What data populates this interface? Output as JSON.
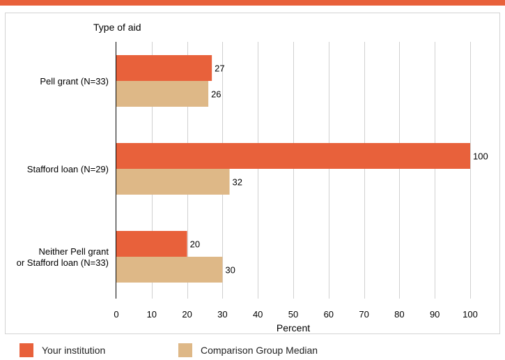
{
  "colors": {
    "top_rule": "#e8613b",
    "your_institution": "#e8613b",
    "comparison": "#deb887",
    "grid": "#d0d0d0",
    "axis": "#000000",
    "text": "#000000"
  },
  "chart_data": {
    "type": "bar",
    "orientation": "horizontal",
    "ylabel": "Type of aid",
    "xlabel": "Percent",
    "xlim": [
      0,
      100
    ],
    "xticks": [
      "0",
      "10",
      "20",
      "30",
      "40",
      "50",
      "60",
      "70",
      "80",
      "90",
      "100"
    ],
    "grid": "vertical",
    "categories": [
      [
        "Pell grant  (N=33)"
      ],
      [
        "Stafford loan (N=29)"
      ],
      [
        "Neither Pell grant",
        "or Stafford loan (N=33)"
      ]
    ],
    "series": [
      {
        "name": "Your institution",
        "values": [
          27,
          100,
          20
        ]
      },
      {
        "name": "Comparison Group Median",
        "values": [
          26,
          32,
          30
        ]
      }
    ],
    "legend_position": "bottom"
  }
}
